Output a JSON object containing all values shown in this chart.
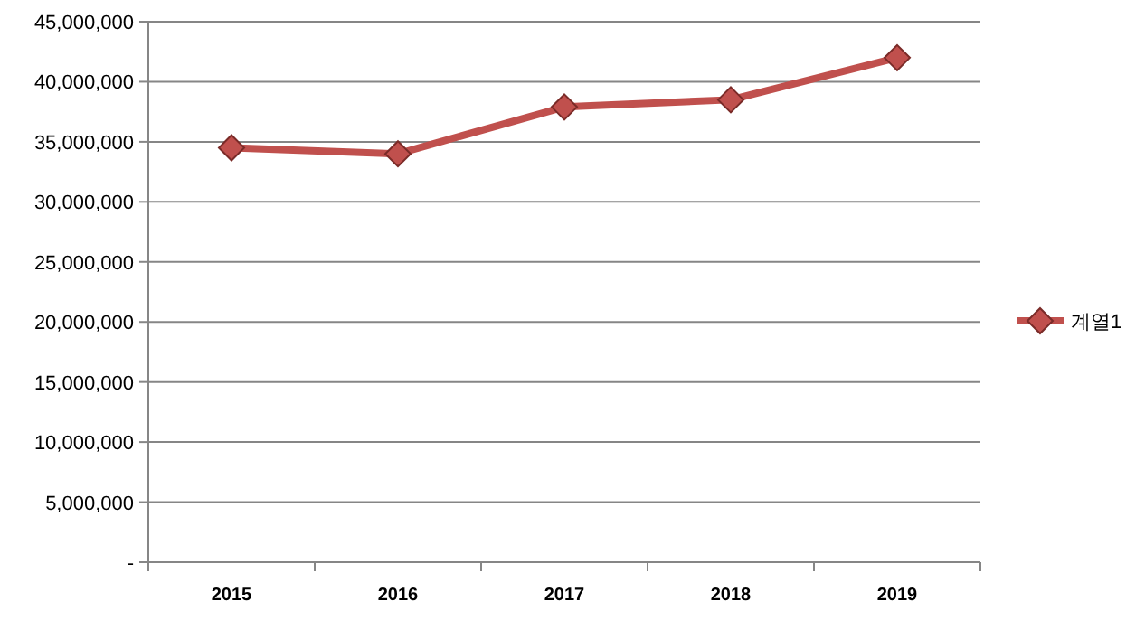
{
  "chart_data": {
    "type": "line",
    "categories": [
      "2015",
      "2016",
      "2017",
      "2018",
      "2019"
    ],
    "series": [
      {
        "name": "계열1",
        "color": "#c0504d",
        "values": [
          34500000,
          34000000,
          37900000,
          38500000,
          42000000
        ]
      }
    ],
    "ylim": [
      0,
      45000000
    ],
    "yticks": [
      {
        "value": 0,
        "label": "-"
      },
      {
        "value": 5000000,
        "label": "5,000,000"
      },
      {
        "value": 10000000,
        "label": "10,000,000"
      },
      {
        "value": 15000000,
        "label": "15,000,000"
      },
      {
        "value": 20000000,
        "label": "20,000,000"
      },
      {
        "value": 25000000,
        "label": "25,000,000"
      },
      {
        "value": 30000000,
        "label": "30,000,000"
      },
      {
        "value": 35000000,
        "label": "35,000,000"
      },
      {
        "value": 40000000,
        "label": "40,000,000"
      },
      {
        "value": 45000000,
        "label": "45,000,000"
      }
    ],
    "grid": "y",
    "legend": "right",
    "marker": "diamond",
    "line_style": "solid"
  }
}
